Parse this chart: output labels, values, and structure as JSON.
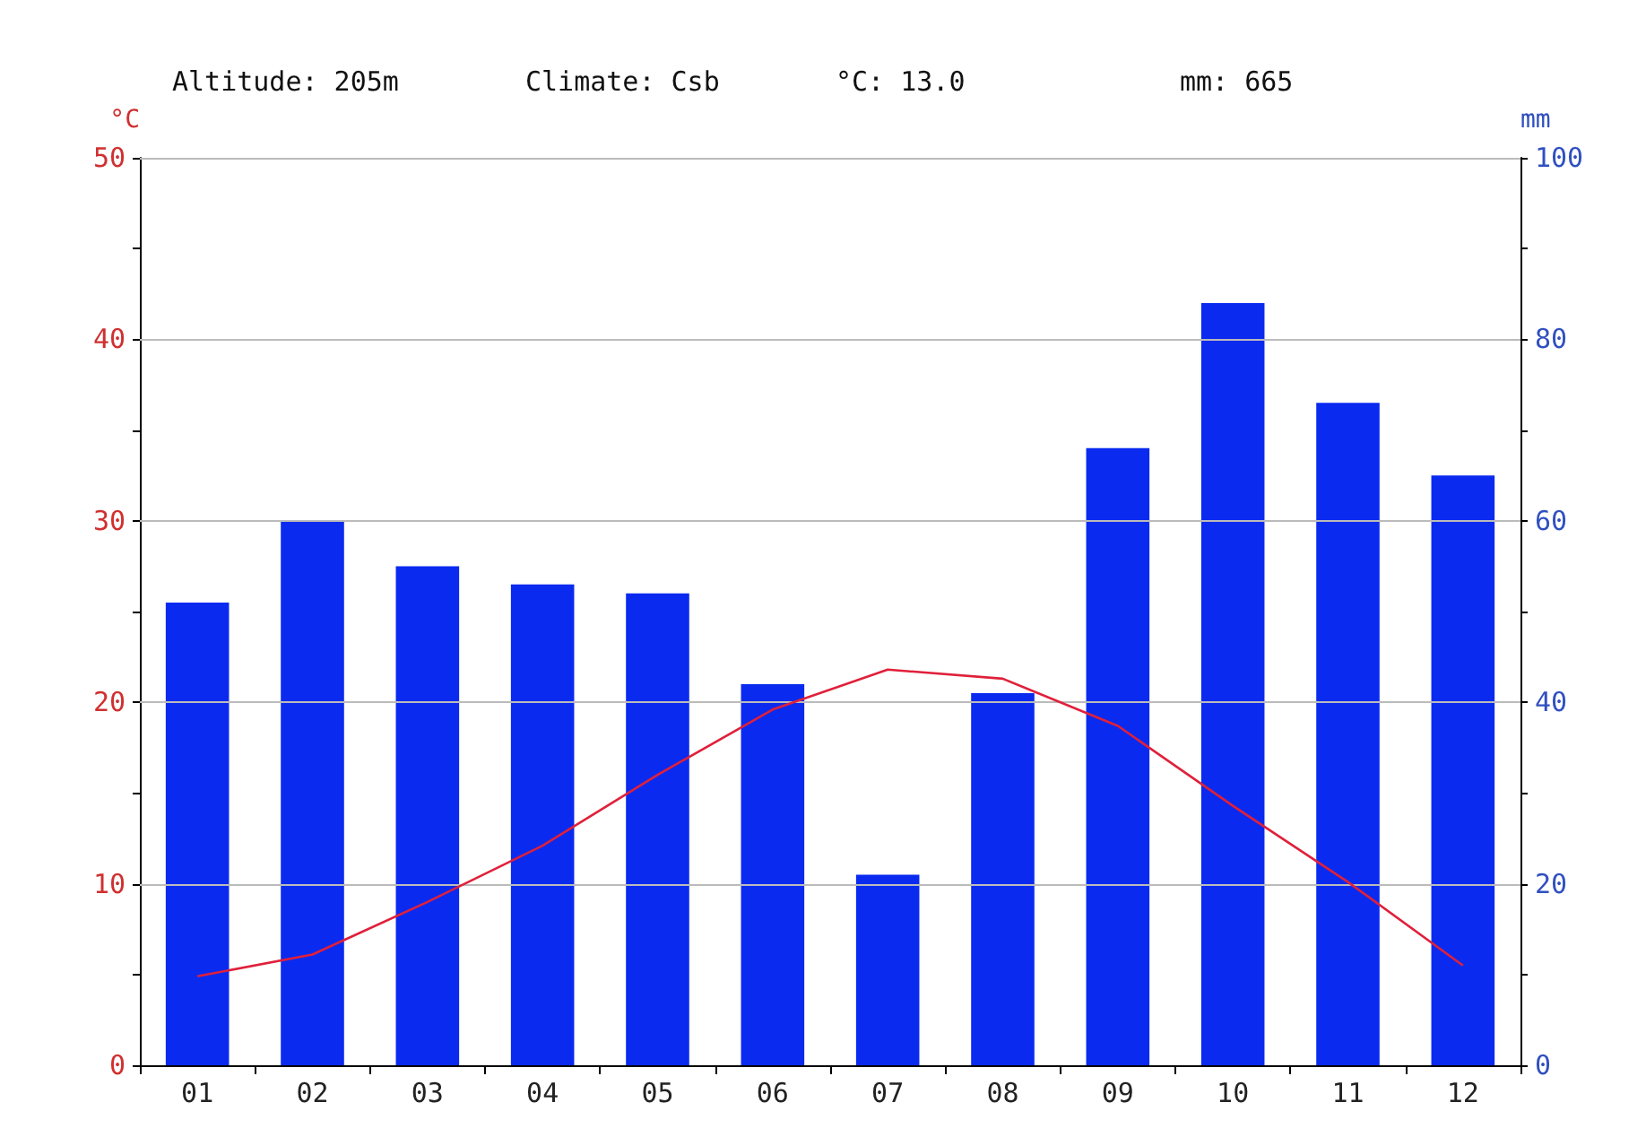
{
  "chart_data": {
    "type": "bar",
    "annotations": [
      "Altitude: 205m",
      "Climate: Csb",
      "°C: 13.0",
      "mm: 665"
    ],
    "ylabel": "°C",
    "y2label": "mm",
    "categories": [
      "01",
      "02",
      "03",
      "04",
      "05",
      "06",
      "07",
      "08",
      "09",
      "10",
      "11",
      "12"
    ],
    "series": [
      {
        "axis": "y2",
        "color": "#0a2af0",
        "values": [
          51,
          60,
          55,
          53,
          52,
          42,
          21,
          41,
          68,
          84,
          73,
          65
        ]
      },
      {
        "type": "line",
        "color": "#e0203a",
        "marker": "none",
        "values": [
          4.9,
          6.1,
          9.0,
          12.1,
          16.0,
          19.6,
          21.8,
          21.3,
          18.7,
          14.3,
          10.1,
          5.5
        ]
      }
    ],
    "ylim": [
      0,
      50
    ],
    "yticks": [
      0,
      {
        "value": 5,
        "label": null
      },
      10,
      {
        "value": 15,
        "label": null
      },
      20,
      {
        "value": 25,
        "label": null
      },
      30,
      {
        "value": 35,
        "label": null
      },
      40,
      {
        "value": 45,
        "label": null
      },
      50
    ],
    "y2lim": [
      0,
      100
    ],
    "y2ticks": [
      0,
      {
        "value": 10,
        "label": null
      },
      20,
      {
        "value": 30,
        "label": null
      },
      40,
      {
        "value": 50,
        "label": null
      },
      60,
      {
        "value": 70,
        "label": null
      },
      80,
      {
        "value": 90,
        "label": null
      },
      100
    ],
    "grid": "y"
  }
}
